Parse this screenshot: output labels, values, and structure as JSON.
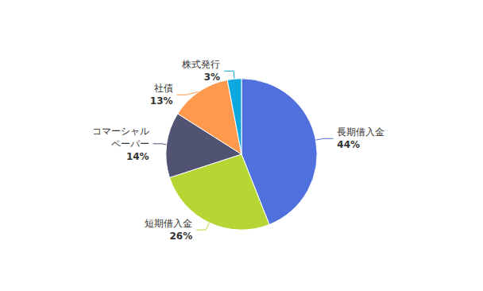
{
  "chart_data": {
    "type": "pie",
    "categories": [
      "長期借入金",
      "短期借入金",
      "コマーシャル\nペーパー",
      "社債",
      "株式発行"
    ],
    "values": [
      44,
      26,
      14,
      13,
      3
    ],
    "value_labels": [
      "44%",
      "26%",
      "14%",
      "13%",
      "3%"
    ],
    "data_labels": true
  }
}
